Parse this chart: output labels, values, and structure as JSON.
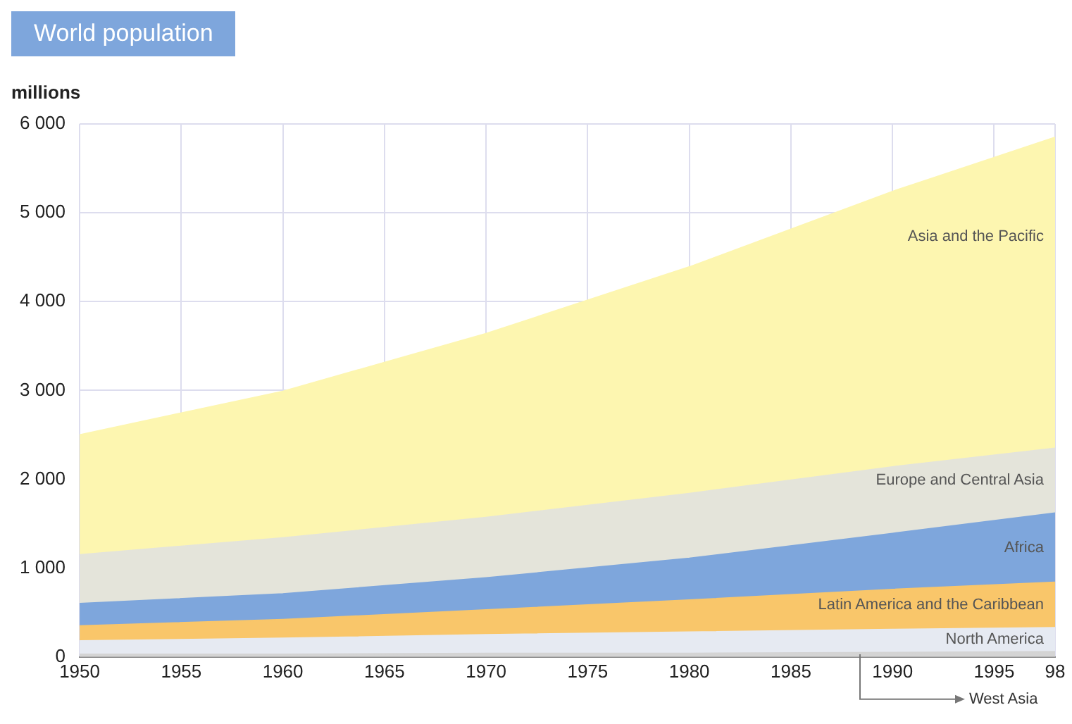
{
  "chart_data": {
    "type": "area",
    "title": "World population",
    "ylabel": "millions",
    "stacked": true,
    "x": [
      1950,
      1960,
      1970,
      1980,
      1990,
      1998
    ],
    "series": [
      {
        "name": "West Asia",
        "color": "#d4d4d4",
        "values": [
          30,
          30,
          40,
          40,
          50,
          60
        ]
      },
      {
        "name": "North America",
        "color": "#e6eaf2",
        "values": [
          150,
          180,
          210,
          240,
          260,
          270
        ]
      },
      {
        "name": "Latin America and the Caribbean",
        "color": "#f9c66a",
        "values": [
          170,
          210,
          280,
          360,
          450,
          510
        ]
      },
      {
        "name": "Africa",
        "color": "#7ea6dc",
        "values": [
          250,
          290,
          360,
          470,
          630,
          780
        ]
      },
      {
        "name": "Europe and Central Asia",
        "color": "#e4e4da",
        "values": [
          550,
          630,
          680,
          730,
          750,
          730
        ]
      },
      {
        "name": "Asia and the Pacific",
        "color": "#fdf6b0",
        "values": [
          1350,
          1650,
          2070,
          2550,
          3100,
          3500
        ]
      }
    ],
    "xlim": [
      1950,
      1998
    ],
    "xticks": [
      1950,
      1955,
      1960,
      1965,
      1970,
      1975,
      1980,
      1985,
      1990,
      1995,
      {
        "value": 1998,
        "label": "98"
      }
    ],
    "ylim": [
      0,
      6000
    ],
    "yticks": [
      {
        "value": 0,
        "label": "0"
      },
      {
        "value": 1000,
        "label": "1 000"
      },
      {
        "value": 2000,
        "label": "2 000"
      },
      {
        "value": 3000,
        "label": "3 000"
      },
      {
        "value": 4000,
        "label": "4 000"
      },
      {
        "value": 5000,
        "label": "5 000"
      },
      {
        "value": 6000,
        "label": "6 000"
      }
    ],
    "grid": true,
    "legend": false
  }
}
